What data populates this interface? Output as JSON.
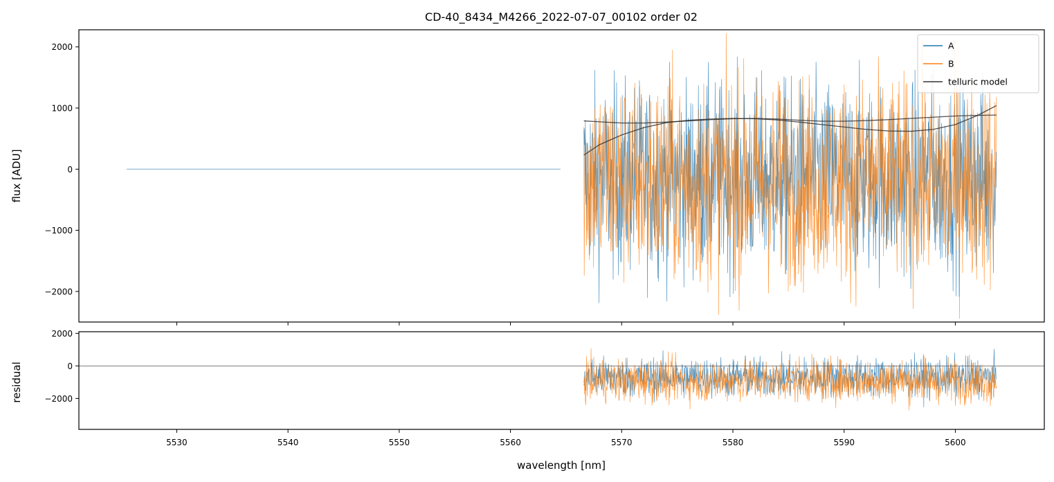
{
  "chart_data": [
    {
      "panel": "top",
      "type": "line",
      "title": "CD-40_8434_M4266_2022-07-07_00102  order 02",
      "xlabel": "",
      "ylabel": "flux [ADU]",
      "xlim": [
        5521.2,
        5608.0
      ],
      "ylim": [
        -2500,
        2280
      ],
      "yticks": [
        2000,
        1000,
        0,
        -1000,
        -2000
      ],
      "ytick_labels": [
        "2000",
        "1000",
        "0",
        "−1000",
        "−2000"
      ],
      "legend_position": "top-right",
      "series": [
        {
          "name": "A",
          "color": "#1f77b4",
          "segments": [
            {
              "kind": "flat",
              "x": [
                5525.5,
                5564.5
              ],
              "y": 0
            },
            {
              "kind": "noise",
              "x": [
                5566.6,
                5603.7
              ],
              "center": -150,
              "amplitude": 1400
            }
          ]
        },
        {
          "name": "B",
          "color": "#ff7f0e",
          "segments": [
            {
              "kind": "noise",
              "x": [
                5566.6,
                5603.7
              ],
              "center": -200,
              "amplitude": 1500
            }
          ]
        },
        {
          "name": "telluric model",
          "color": "#333333",
          "curves": [
            {
              "x": [
                5566.6,
                5568,
                5570,
                5572,
                5574,
                5576,
                5578,
                5580,
                5582,
                5584,
                5586,
                5588,
                5590,
                5592,
                5594,
                5596,
                5598,
                5600,
                5602,
                5603.7
              ],
              "y": [
                790,
                775,
                755,
                755,
                770,
                790,
                810,
                825,
                830,
                820,
                800,
                785,
                785,
                795,
                810,
                830,
                850,
                870,
                880,
                885
              ]
            },
            {
              "x": [
                5566.6,
                5568,
                5570,
                5572,
                5574,
                5576,
                5578,
                5580,
                5582,
                5584,
                5586,
                5588,
                5590,
                5592,
                5594,
                5596,
                5598,
                5600,
                5602,
                5603.7
              ],
              "y": [
                230,
                400,
                560,
                680,
                760,
                800,
                820,
                830,
                825,
                805,
                770,
                730,
                690,
                650,
                625,
                620,
                650,
                730,
                880,
                1040
              ]
            }
          ]
        }
      ]
    },
    {
      "panel": "bottom",
      "type": "line",
      "title": "",
      "xlabel": "wavelength [nm]",
      "ylabel": "residual",
      "xlim": [
        5521.2,
        5608.0
      ],
      "ylim": [
        -3900,
        2100
      ],
      "xticks": [
        5530,
        5540,
        5550,
        5560,
        5570,
        5580,
        5590,
        5600
      ],
      "yticks": [
        2000,
        0,
        -2000
      ],
      "ytick_labels": [
        "2000",
        "0",
        "−2000"
      ],
      "reference_line": 0,
      "series": [
        {
          "name": "A",
          "color": "#1f77b4",
          "segments": [
            {
              "kind": "noise",
              "x": [
                5566.6,
                5603.7
              ],
              "center": -700,
              "amplitude": 1100
            }
          ]
        },
        {
          "name": "B",
          "color": "#ff7f0e",
          "segments": [
            {
              "kind": "noise",
              "x": [
                5566.6,
                5603.7
              ],
              "center": -900,
              "amplitude": 1200
            }
          ]
        }
      ]
    }
  ]
}
